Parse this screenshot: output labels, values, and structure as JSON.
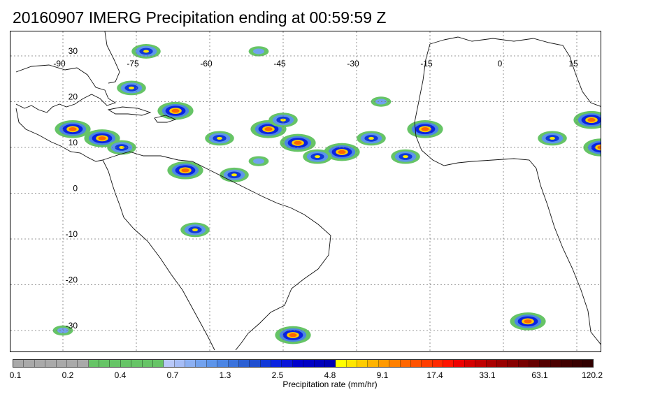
{
  "title": "20160907 IMERG Precipitation ending at 00:59:59 Z",
  "map": {
    "lon_labels": [
      "-90",
      "-75",
      "-60",
      "-45",
      "-30",
      "-15",
      "0",
      "15"
    ],
    "lat_labels": [
      "30",
      "20",
      "10",
      "0",
      "-10",
      "-20",
      "-30"
    ],
    "gridlines": "dotted"
  },
  "colorbar": {
    "colors": [
      "#a9a9a9",
      "#a9a9a9",
      "#a9a9a9",
      "#a9a9a9",
      "#a9a9a9",
      "#a9a9a9",
      "#a9a9a9",
      "#66c466",
      "#66c466",
      "#66c466",
      "#66c466",
      "#66c466",
      "#66c466",
      "#66c466",
      "#b8c8f8",
      "#a6bdf6",
      "#8cb0f2",
      "#72a2ee",
      "#5d95ea",
      "#4b85e4",
      "#3a72dc",
      "#2b5fd3",
      "#1f4ed0",
      "#1038d8",
      "#0a22e0",
      "#0a14d8",
      "#0000cc",
      "#0000c4",
      "#0000bc",
      "#0000b4",
      "#ffff00",
      "#ffe600",
      "#ffcc00",
      "#ffb300",
      "#ff9900",
      "#ff8000",
      "#ff6600",
      "#ff5200",
      "#ff3d00",
      "#ff2900",
      "#ff1400",
      "#ee0000",
      "#d40000",
      "#bf0000",
      "#aa0000",
      "#990000",
      "#880000",
      "#770000",
      "#660000",
      "#550000",
      "#4a0000",
      "#400000",
      "#380000",
      "#300000"
    ],
    "tick_labels": [
      "0.1",
      "0.2",
      "0.4",
      "0.7",
      "1.3",
      "2.5",
      "4.8",
      "9.1",
      "17.4",
      "33.1",
      "63.1",
      "120.2"
    ],
    "label": "Precipitation rate (mm/hr)"
  },
  "storms": [
    {
      "lon": -42,
      "lat": 11,
      "intensity": "high"
    },
    {
      "lon": -33,
      "lat": 9,
      "intensity": "high"
    },
    {
      "lon": -16,
      "lat": 14,
      "intensity": "high"
    },
    {
      "lon": -20,
      "lat": 8,
      "intensity": "med"
    },
    {
      "lon": -88,
      "lat": 14,
      "intensity": "high"
    },
    {
      "lon": -82,
      "lat": 12,
      "intensity": "high"
    },
    {
      "lon": -78,
      "lat": 10,
      "intensity": "med"
    },
    {
      "lon": -65,
      "lat": 5,
      "intensity": "high"
    },
    {
      "lon": -55,
      "lat": 4,
      "intensity": "med"
    },
    {
      "lon": -67,
      "lat": 18,
      "intensity": "high"
    },
    {
      "lon": -58,
      "lat": 12,
      "intensity": "med"
    },
    {
      "lon": -48,
      "lat": 14,
      "intensity": "high"
    },
    {
      "lon": -45,
      "lat": 16,
      "intensity": "med"
    },
    {
      "lon": 18,
      "lat": 16,
      "intensity": "high"
    },
    {
      "lon": 20,
      "lat": 10,
      "intensity": "high"
    },
    {
      "lon": 10,
      "lat": 12,
      "intensity": "med"
    },
    {
      "lon": 5,
      "lat": -28,
      "intensity": "high"
    },
    {
      "lon": -43,
      "lat": -31,
      "intensity": "high"
    },
    {
      "lon": -63,
      "lat": -8,
      "intensity": "med"
    },
    {
      "lon": -73,
      "lat": 31,
      "intensity": "med"
    },
    {
      "lon": -76,
      "lat": 23,
      "intensity": "med"
    },
    {
      "lon": -90,
      "lat": -30,
      "intensity": "low"
    },
    {
      "lon": -50,
      "lat": 31,
      "intensity": "low"
    },
    {
      "lon": -27,
      "lat": 12,
      "intensity": "med"
    },
    {
      "lon": -50,
      "lat": 7,
      "intensity": "low"
    },
    {
      "lon": -38,
      "lat": 8,
      "intensity": "med"
    },
    {
      "lon": -25,
      "lat": 20,
      "intensity": "low"
    }
  ]
}
